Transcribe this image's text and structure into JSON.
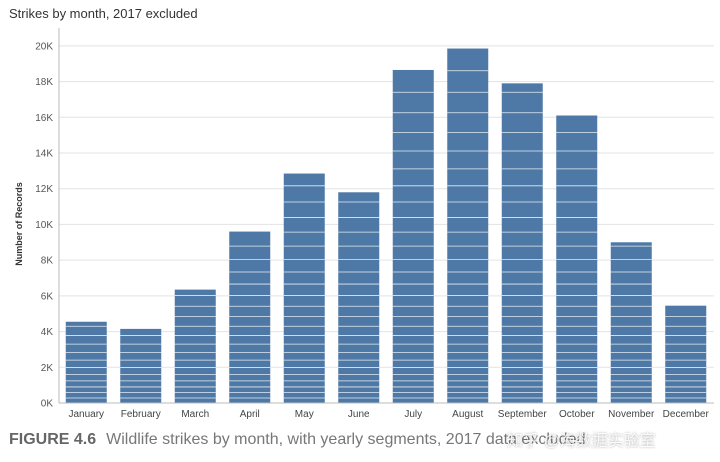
{
  "chart_data": {
    "type": "bar",
    "title": "Strikes by month, 2017 excluded",
    "ylabel": "Number of Records",
    "xlabel": "",
    "categories": [
      "January",
      "February",
      "March",
      "April",
      "May",
      "June",
      "July",
      "August",
      "September",
      "October",
      "November",
      "December"
    ],
    "values": [
      4550,
      4150,
      6350,
      9600,
      12850,
      11800,
      18650,
      19850,
      17900,
      16100,
      9000,
      5450
    ],
    "ylim": [
      0,
      21000
    ],
    "yticks": [
      0,
      2000,
      4000,
      6000,
      8000,
      10000,
      12000,
      14000,
      16000,
      18000,
      20000
    ],
    "ytick_labels": [
      "0K",
      "2K",
      "4K",
      "6K",
      "8K",
      "10K",
      "12K",
      "14K",
      "16K",
      "18K",
      "20K"
    ],
    "grid": true,
    "bar_color": "#4e79a7",
    "segment_line_color": "#ffffff"
  },
  "caption": {
    "label": "FIGURE 4.6",
    "text": "Wildlife strikes by month, with yearly segments, 2017 data excluded"
  },
  "watermark": {
    "text": "知乎 @海数据实验室"
  }
}
